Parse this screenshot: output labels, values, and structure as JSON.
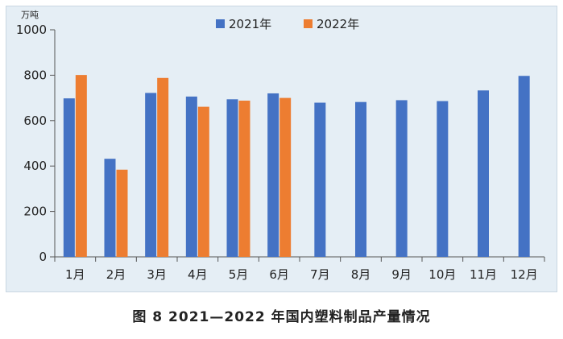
{
  "chart_data": {
    "type": "bar",
    "unit": "万吨",
    "categories": [
      "1月",
      "2月",
      "3月",
      "4月",
      "5月",
      "6月",
      "7月",
      "8月",
      "9月",
      "10月",
      "11月",
      "12月"
    ],
    "series": [
      {
        "name": "2021年",
        "color": "#4472c4",
        "values": [
          698,
          432,
          722,
          706,
          694,
          720,
          679,
          682,
          690,
          686,
          733,
          797
        ]
      },
      {
        "name": "2022年",
        "color": "#ed7d31",
        "values": [
          801,
          384,
          788,
          661,
          688,
          700,
          null,
          null,
          null,
          null,
          null,
          null
        ]
      }
    ],
    "ylim": [
      0,
      1000
    ],
    "yticks": [
      0,
      200,
      400,
      600,
      800,
      1000
    ],
    "grid": false,
    "legend_position": "top-center"
  },
  "caption": "图 8  2021—2022 年国内塑料制品产量情况"
}
